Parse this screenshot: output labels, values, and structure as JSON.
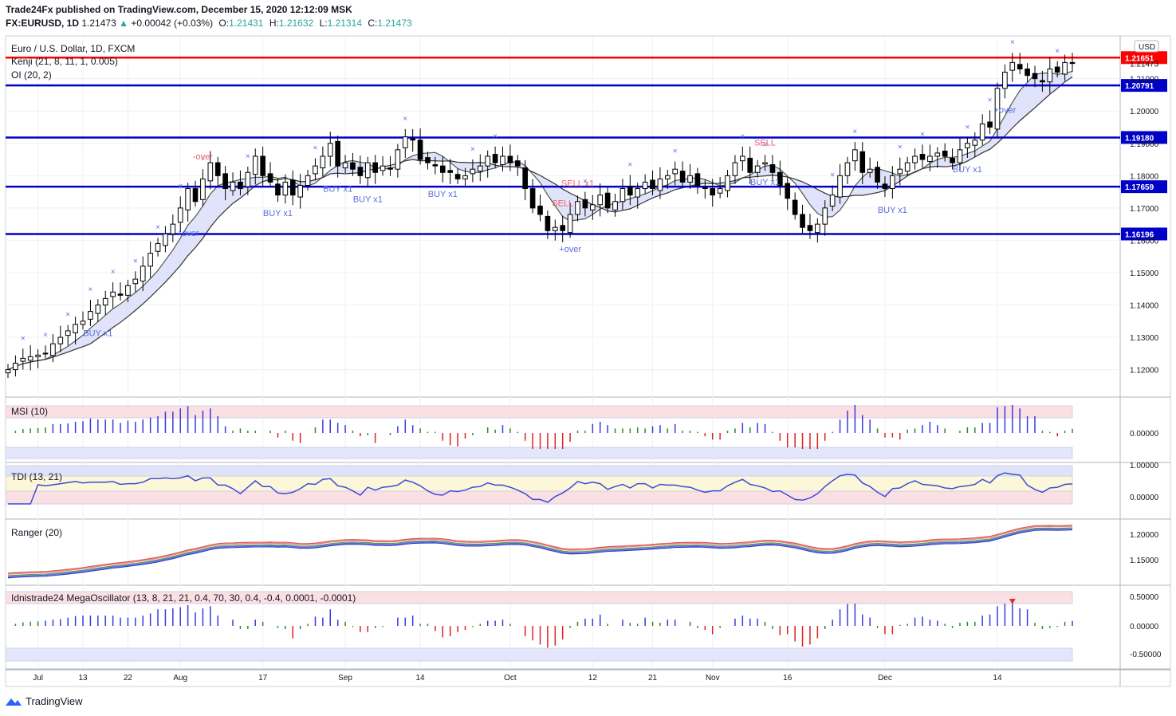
{
  "header": {
    "publisher_line": "Trade24Fx published on TradingView.com, December 15, 2020 12:12:09 MSK",
    "symbol": "FX:EURUSD, 1D",
    "last": "1.21473",
    "change": "+0.00042 (+0.03%)",
    "o_label": "O:",
    "o": "1.21431",
    "h_label": "H:",
    "h": "1.21632",
    "l_label": "L:",
    "l": "1.21314",
    "c_label": "C:",
    "c": "1.21473"
  },
  "legend": {
    "title": "Euro / U.S. Dollar, 1D, FXCM",
    "kenji": "Kenji (21, 8, 11, 1, 0.005)",
    "oi": "OI (20, 2)",
    "currency": "USD"
  },
  "panes": {
    "msi": "MSI (10)",
    "tdi": "TDI (13, 21)",
    "ranger": "Ranger (20)",
    "mega": "Idnistrade24 MegaOscillator (13, 8, 21, 21, 0.4, 70, 30, 0.4, -0.4, 0.0001, -0.0001)"
  },
  "branding": {
    "logo_text": "TradingView"
  },
  "colors": {
    "up": "#ffffff",
    "down": "#000000",
    "red_line": "#ff0000",
    "blue_line": "#0000c8",
    "signal": "#5b6ee1",
    "sell": "#f06070",
    "accent_blue": "#2962ff"
  },
  "chart_data": {
    "type": "candlestick",
    "symbol": "FX:EURUSD",
    "timeframe": "1D",
    "price_axis_ticks": [
      "1.21000",
      "1.20000",
      "1.19000",
      "1.18000",
      "1.17000",
      "1.16000",
      "1.15000",
      "1.14000",
      "1.13000",
      "1.12000"
    ],
    "time_axis_ticks": [
      "Jul",
      "13",
      "22",
      "Aug",
      "17",
      "Sep",
      "14",
      "Oct",
      "12",
      "21",
      "Nov",
      "16",
      "Dec",
      "14"
    ],
    "ylim": [
      1.113,
      1.222
    ],
    "current_price": "1.21473",
    "horizontal_levels": [
      {
        "value": 1.21651,
        "label": "1.21651",
        "color": "#ff0000"
      },
      {
        "value": 1.20791,
        "label": "1.20791",
        "color": "#0000c8"
      },
      {
        "value": 1.1918,
        "label": "1.19180",
        "color": "#0000c8"
      },
      {
        "value": 1.17659,
        "label": "1.17659",
        "color": "#0000c8"
      },
      {
        "value": 1.16196,
        "label": "1.16196",
        "color": "#0000c8"
      }
    ],
    "closes": [
      1.12,
      1.122,
      1.1235,
      1.124,
      1.1245,
      1.125,
      1.128,
      1.13,
      1.132,
      1.134,
      1.135,
      1.138,
      1.14,
      1.142,
      1.144,
      1.143,
      1.146,
      1.148,
      1.152,
      1.156,
      1.159,
      1.162,
      1.165,
      1.17,
      1.176,
      1.172,
      1.179,
      1.184,
      1.18,
      1.176,
      1.178,
      1.176,
      1.181,
      1.186,
      1.18,
      1.178,
      1.174,
      1.178,
      1.174,
      1.177,
      1.18,
      1.183,
      1.186,
      1.19,
      1.183,
      1.184,
      1.182,
      1.18,
      1.184,
      1.181,
      1.183,
      1.182,
      1.188,
      1.192,
      1.191,
      1.185,
      1.184,
      1.183,
      1.181,
      1.181,
      1.179,
      1.18,
      1.182,
      1.183,
      1.186,
      1.184,
      1.186,
      1.184,
      1.183,
      1.176,
      1.17,
      1.168,
      1.163,
      1.164,
      1.163,
      1.168,
      1.172,
      1.17,
      1.171,
      1.174,
      1.17,
      1.172,
      1.176,
      1.174,
      1.176,
      1.178,
      1.176,
      1.179,
      1.18,
      1.182,
      1.178,
      1.18,
      1.177,
      1.176,
      1.174,
      1.176,
      1.18,
      1.184,
      1.186,
      1.181,
      1.183,
      1.184,
      1.181,
      1.177,
      1.173,
      1.168,
      1.164,
      1.163,
      1.165,
      1.17,
      1.174,
      1.18,
      1.184,
      1.188,
      1.181,
      1.182,
      1.178,
      1.176,
      1.18,
      1.182,
      1.184,
      1.186,
      1.185,
      1.186,
      1.187,
      1.186,
      1.184,
      1.188,
      1.19,
      1.191,
      1.196,
      1.195,
      1.207,
      1.212,
      1.215,
      1.213,
      1.211,
      1.21,
      1.209,
      1.213,
      1.212,
      1.215,
      1.2147
    ],
    "annotations": [
      "BUY x1",
      "BUY x1",
      "BUY x1",
      "BUY x1",
      "BUY x1",
      "BUY x1",
      "BUY x1",
      "BUY x1",
      "SELL",
      "SELL x1",
      "SELL",
      "+over",
      "-over",
      "+over",
      "+over"
    ],
    "msi": {
      "range": [
        -1,
        1
      ],
      "ticks": [
        "0.00000"
      ]
    },
    "tdi": {
      "ticks": [
        "1.00000",
        "0.00000"
      ]
    },
    "ranger": {
      "ticks": [
        "1.20000",
        "1.15000"
      ]
    },
    "mega": {
      "ticks": [
        "0.50000",
        "0.00000",
        "-0.50000"
      ]
    }
  }
}
